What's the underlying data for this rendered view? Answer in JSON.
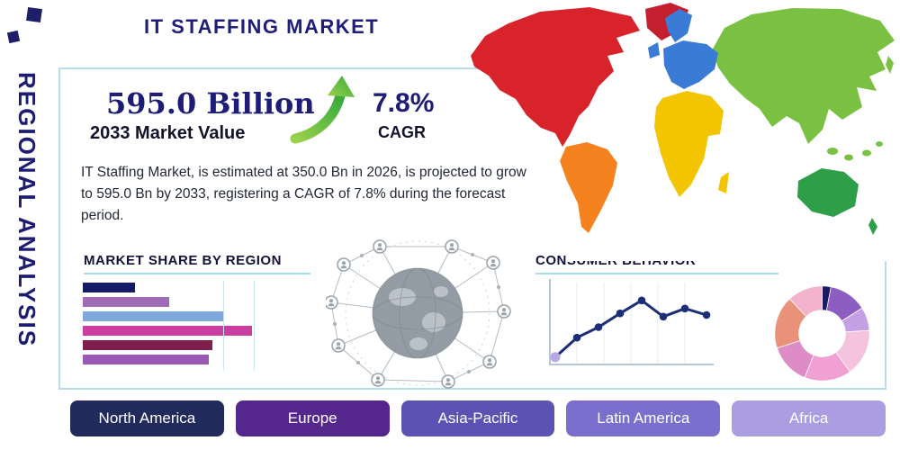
{
  "page": {
    "side_label": "REGIONAL ANALYSIS",
    "title": "IT STAFFING MARKET"
  },
  "highlight": {
    "market_value": "595.0 Billion",
    "market_value_label": "2033 Market Value",
    "cagr_value": "7.8%",
    "cagr_label": "CAGR",
    "growth_arrow_color": "#4fae3d",
    "description": "IT Staffing Market, is estimated at 350.0 Bn in 2026, is projected to grow to 595.0 Bn by 2033, registering a CAGR of 7.8% during the forecast period."
  },
  "sections": {
    "market_share_heading": "MARKET SHARE BY REGION",
    "consumer_behavior_heading": "CONSUMER BEHAVIOR"
  },
  "region_buttons": [
    {
      "label": "North America",
      "color": "#222a5c"
    },
    {
      "label": "Europe",
      "color": "#55268c"
    },
    {
      "label": "Asia-Pacific",
      "color": "#5a53b4"
    },
    {
      "label": "Latin America",
      "color": "#7b6fce"
    },
    {
      "label": "Africa",
      "color": "#aa9de2"
    }
  ],
  "map_regions": [
    {
      "name": "North America",
      "color": "#d8232a"
    },
    {
      "name": "Greenland",
      "color": "#c41f2f"
    },
    {
      "name": "South America",
      "color": "#f4821f"
    },
    {
      "name": "Europe",
      "color": "#3a7bd5"
    },
    {
      "name": "Africa",
      "color": "#f2c500"
    },
    {
      "name": "Asia",
      "color": "#7ac143"
    },
    {
      "name": "Australia",
      "color": "#2f9e49"
    }
  ],
  "chart_data": [
    {
      "type": "bar",
      "title": "MARKET SHARE BY REGION",
      "orientation": "horizontal",
      "axis_labels_visible": false,
      "value_scale": "percent of chart width, estimated from pixels",
      "xlim": [
        0,
        100
      ],
      "values": [
        29,
        48,
        78,
        94,
        72,
        70
      ],
      "colors": [
        "#141a66",
        "#a06cb5",
        "#7fa8dc",
        "#c93ea0",
        "#7e1f4e",
        "#9b59b6"
      ]
    },
    {
      "type": "line",
      "title": "CONSUMER BEHAVIOR",
      "axis_labels_visible": false,
      "x": [
        1,
        2,
        3,
        4,
        5,
        6,
        7,
        8
      ],
      "values": [
        8,
        32,
        45,
        62,
        78,
        58,
        68,
        60
      ],
      "ylim": [
        0,
        100
      ],
      "grid": true,
      "line_color": "#1c2e78",
      "first_point_color": "#b7a8e6"
    },
    {
      "type": "pie",
      "title": "",
      "donut": true,
      "labels_visible": false,
      "values": [
        3,
        13,
        8,
        16,
        16,
        14,
        18,
        12
      ],
      "colors": [
        "#181b60",
        "#8d5ec1",
        "#c5a0e4",
        "#f4c4df",
        "#f0a0d2",
        "#de8cc6",
        "#ea9279",
        "#f2b3cb"
      ]
    }
  ]
}
